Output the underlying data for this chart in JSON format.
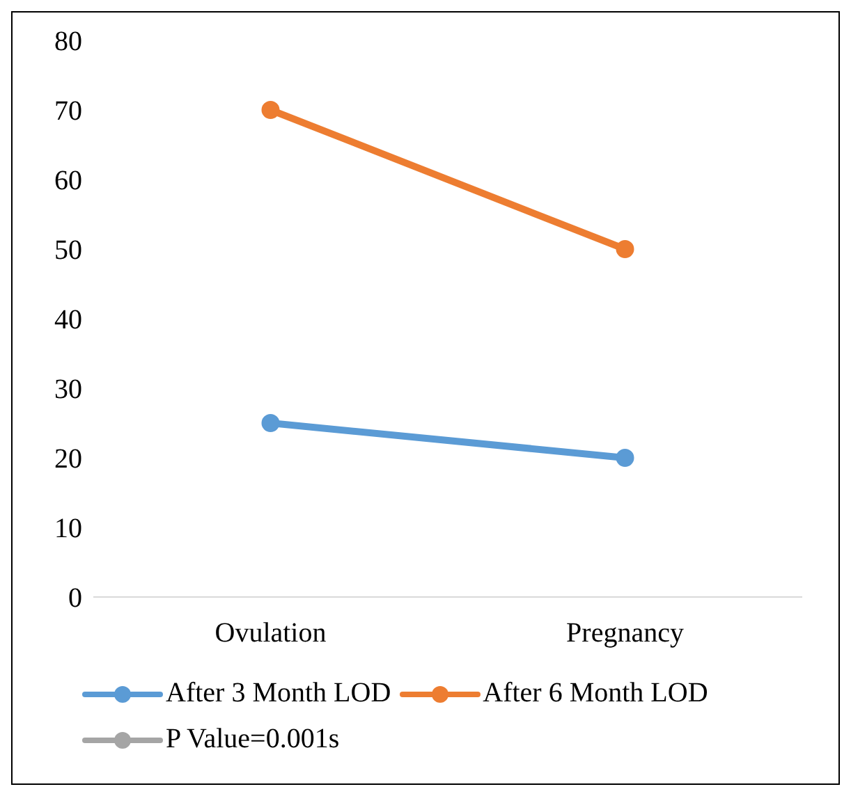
{
  "chart_data": {
    "type": "line",
    "categories": [
      "Ovulation",
      "Pregnancy"
    ],
    "series": [
      {
        "name": "After 3 Month LOD",
        "color": "#5b9bd5",
        "values": [
          25,
          20
        ]
      },
      {
        "name": "After 6 Month LOD",
        "color": "#ed7d31",
        "values": [
          70,
          50
        ]
      },
      {
        "name": "P Value=0.001s",
        "color": "#a5a5a5",
        "values": [
          null,
          null
        ]
      }
    ],
    "ylim": [
      0,
      80
    ],
    "yticks": [
      0,
      10,
      20,
      30,
      40,
      50,
      60,
      70,
      80
    ],
    "grid": false,
    "legend": "bottom",
    "marker": "circle",
    "line_style": "solid"
  }
}
